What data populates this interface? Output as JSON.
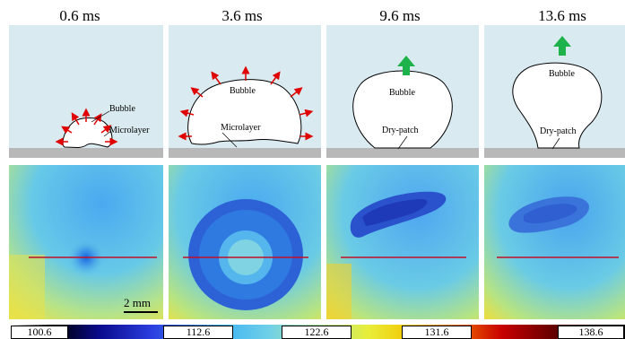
{
  "frames": [
    {
      "time": "0.6 ms",
      "bubble_label": "Bubble",
      "base_label": "Microlayer"
    },
    {
      "time": "3.6 ms",
      "bubble_label": "Bubble",
      "base_label": "Microlayer"
    },
    {
      "time": "9.6 ms",
      "bubble_label": "Bubble",
      "base_label": "Dry-patch"
    },
    {
      "time": "13.6 ms",
      "bubble_label": "Bubble",
      "base_label": "Dry-patch"
    }
  ],
  "scale_bar": {
    "label": "2 mm"
  },
  "colorbar": {
    "ticks": [
      "100.6",
      "112.6",
      "122.6",
      "131.6",
      "138.6"
    ]
  },
  "colors": {
    "background_fluid": "#d9eaf0",
    "wall": "#b8b8b8",
    "arrow_red": "#e00000",
    "arrow_green": "#1db24a",
    "profile_line": "#c0102a"
  }
}
